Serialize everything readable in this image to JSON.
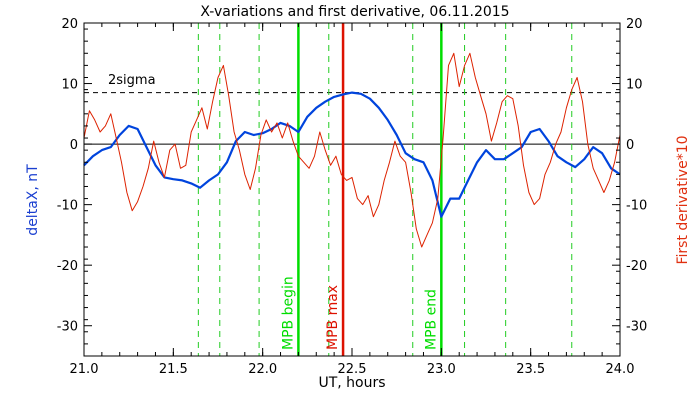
{
  "chart_data": {
    "type": "line",
    "title": "X-variations and first derivative, 06.11.2015",
    "xlabel": "UT, hours",
    "ylabel_left": "deltaX, nT",
    "ylabel_right": "First derivative*10",
    "xlim": [
      21.0,
      24.0
    ],
    "ylim": [
      -35,
      20
    ],
    "x_ticks": [
      21.0,
      21.5,
      22.0,
      22.5,
      23.0,
      23.5,
      24.0
    ],
    "x_tick_labels": [
      "21.0",
      "21.5",
      "22.0",
      "22.5",
      "23.0",
      "23.5",
      "24.0"
    ],
    "y_ticks": [
      -30,
      -20,
      -10,
      0,
      10,
      20
    ],
    "y_tick_labels": [
      "-30",
      "-20",
      "-10",
      "0",
      "10",
      "20"
    ],
    "zero_line": 0,
    "threshold": {
      "label": "2sigma",
      "value": 8.5
    },
    "markers": [
      {
        "label": "MPB begin",
        "x": 22.2,
        "color": "#00dd00"
      },
      {
        "label": "MPB max",
        "x": 22.45,
        "color": "#dd1100"
      },
      {
        "label": "MPB end",
        "x": 23.0,
        "color": "#00dd00"
      }
    ],
    "dashed_verticals": [
      21.64,
      21.76,
      21.98,
      22.37,
      22.84,
      23.13,
      23.36,
      23.73
    ],
    "series": [
      {
        "name": "deltaX, nT",
        "color": "#0044dd",
        "x": [
          21.0,
          21.05,
          21.1,
          21.15,
          21.2,
          21.25,
          21.3,
          21.35,
          21.4,
          21.45,
          21.5,
          21.55,
          21.6,
          21.65,
          21.7,
          21.75,
          21.8,
          21.85,
          21.9,
          21.95,
          22.0,
          22.05,
          22.1,
          22.15,
          22.2,
          22.25,
          22.3,
          22.35,
          22.4,
          22.45,
          22.5,
          22.55,
          22.6,
          22.65,
          22.7,
          22.75,
          22.8,
          22.85,
          22.9,
          22.95,
          23.0,
          23.05,
          23.1,
          23.15,
          23.2,
          23.25,
          23.3,
          23.35,
          23.4,
          23.45,
          23.5,
          23.55,
          23.6,
          23.65,
          23.7,
          23.75,
          23.8,
          23.85,
          23.9,
          23.95,
          24.0
        ],
        "values": [
          -3.5,
          -2.0,
          -1.0,
          -0.5,
          1.5,
          3.0,
          2.5,
          -0.5,
          -3.5,
          -5.5,
          -5.8,
          -6.0,
          -6.5,
          -7.2,
          -6.0,
          -5.0,
          -3.0,
          0.5,
          2.0,
          1.5,
          1.8,
          2.5,
          3.5,
          3.0,
          2.0,
          4.5,
          6.0,
          7.0,
          7.8,
          8.2,
          8.5,
          8.3,
          7.5,
          6.0,
          4.0,
          1.5,
          -1.5,
          -2.5,
          -3.0,
          -6.0,
          -12.0,
          -9.0,
          -9.0,
          -6.0,
          -3.0,
          -1.0,
          -2.5,
          -2.5,
          -1.5,
          -0.5,
          2.0,
          2.5,
          0.5,
          -2.0,
          -3.0,
          -3.8,
          -2.5,
          -0.5,
          -1.5,
          -4.0,
          -5.0
        ]
      },
      {
        "name": "First derivative*10",
        "color": "#dd2200",
        "x": [
          21.0,
          21.03,
          21.06,
          21.09,
          21.12,
          21.15,
          21.18,
          21.21,
          21.24,
          21.27,
          21.3,
          21.33,
          21.36,
          21.39,
          21.42,
          21.45,
          21.48,
          21.51,
          21.54,
          21.57,
          21.6,
          21.63,
          21.66,
          21.69,
          21.72,
          21.75,
          21.78,
          21.81,
          21.84,
          21.87,
          21.9,
          21.93,
          21.96,
          21.99,
          22.02,
          22.05,
          22.08,
          22.11,
          22.14,
          22.17,
          22.2,
          22.23,
          22.26,
          22.29,
          22.32,
          22.35,
          22.38,
          22.41,
          22.44,
          22.47,
          22.5,
          22.53,
          22.56,
          22.59,
          22.62,
          22.65,
          22.68,
          22.71,
          22.74,
          22.77,
          22.8,
          22.83,
          22.86,
          22.89,
          22.92,
          22.95,
          22.98,
          23.01,
          23.04,
          23.07,
          23.1,
          23.13,
          23.16,
          23.19,
          23.22,
          23.25,
          23.28,
          23.31,
          23.34,
          23.37,
          23.4,
          23.43,
          23.46,
          23.49,
          23.52,
          23.55,
          23.58,
          23.61,
          23.64,
          23.67,
          23.7,
          23.73,
          23.76,
          23.79,
          23.82,
          23.85,
          23.88,
          23.91,
          23.94,
          23.97,
          24.0
        ],
        "values": [
          1.0,
          5.5,
          4.0,
          2.0,
          3.0,
          5.0,
          1.0,
          -3.0,
          -8.0,
          -11.0,
          -9.5,
          -7.0,
          -4.0,
          0.5,
          -3.0,
          -5.5,
          -1.0,
          0.0,
          -4.0,
          -3.5,
          2.0,
          4.0,
          6.0,
          2.5,
          7.0,
          11.0,
          13.0,
          8.0,
          2.0,
          -1.0,
          -5.0,
          -7.5,
          -4.0,
          1.5,
          4.0,
          2.0,
          3.5,
          1.0,
          3.5,
          0.5,
          -2.0,
          -3.0,
          -4.0,
          -2.0,
          2.0,
          -1.0,
          -3.5,
          -2.0,
          -5.0,
          -6.0,
          -5.5,
          -9.0,
          -10.0,
          -8.5,
          -12.0,
          -10.0,
          -6.0,
          -3.0,
          0.5,
          -2.0,
          -3.0,
          -8.0,
          -14.0,
          -17.0,
          -15.0,
          -13.0,
          -9.0,
          1.0,
          13.0,
          15.0,
          9.5,
          13.0,
          15.0,
          11.0,
          8.0,
          5.0,
          0.5,
          3.5,
          7.0,
          8.0,
          7.5,
          3.0,
          -3.5,
          -8.0,
          -10.0,
          -9.0,
          -5.0,
          -3.0,
          0.0,
          2.0,
          6.0,
          9.0,
          11.0,
          7.0,
          0.0,
          -4.0,
          -6.0,
          -8.0,
          -6.0,
          -3.0,
          1.5
        ]
      }
    ]
  }
}
